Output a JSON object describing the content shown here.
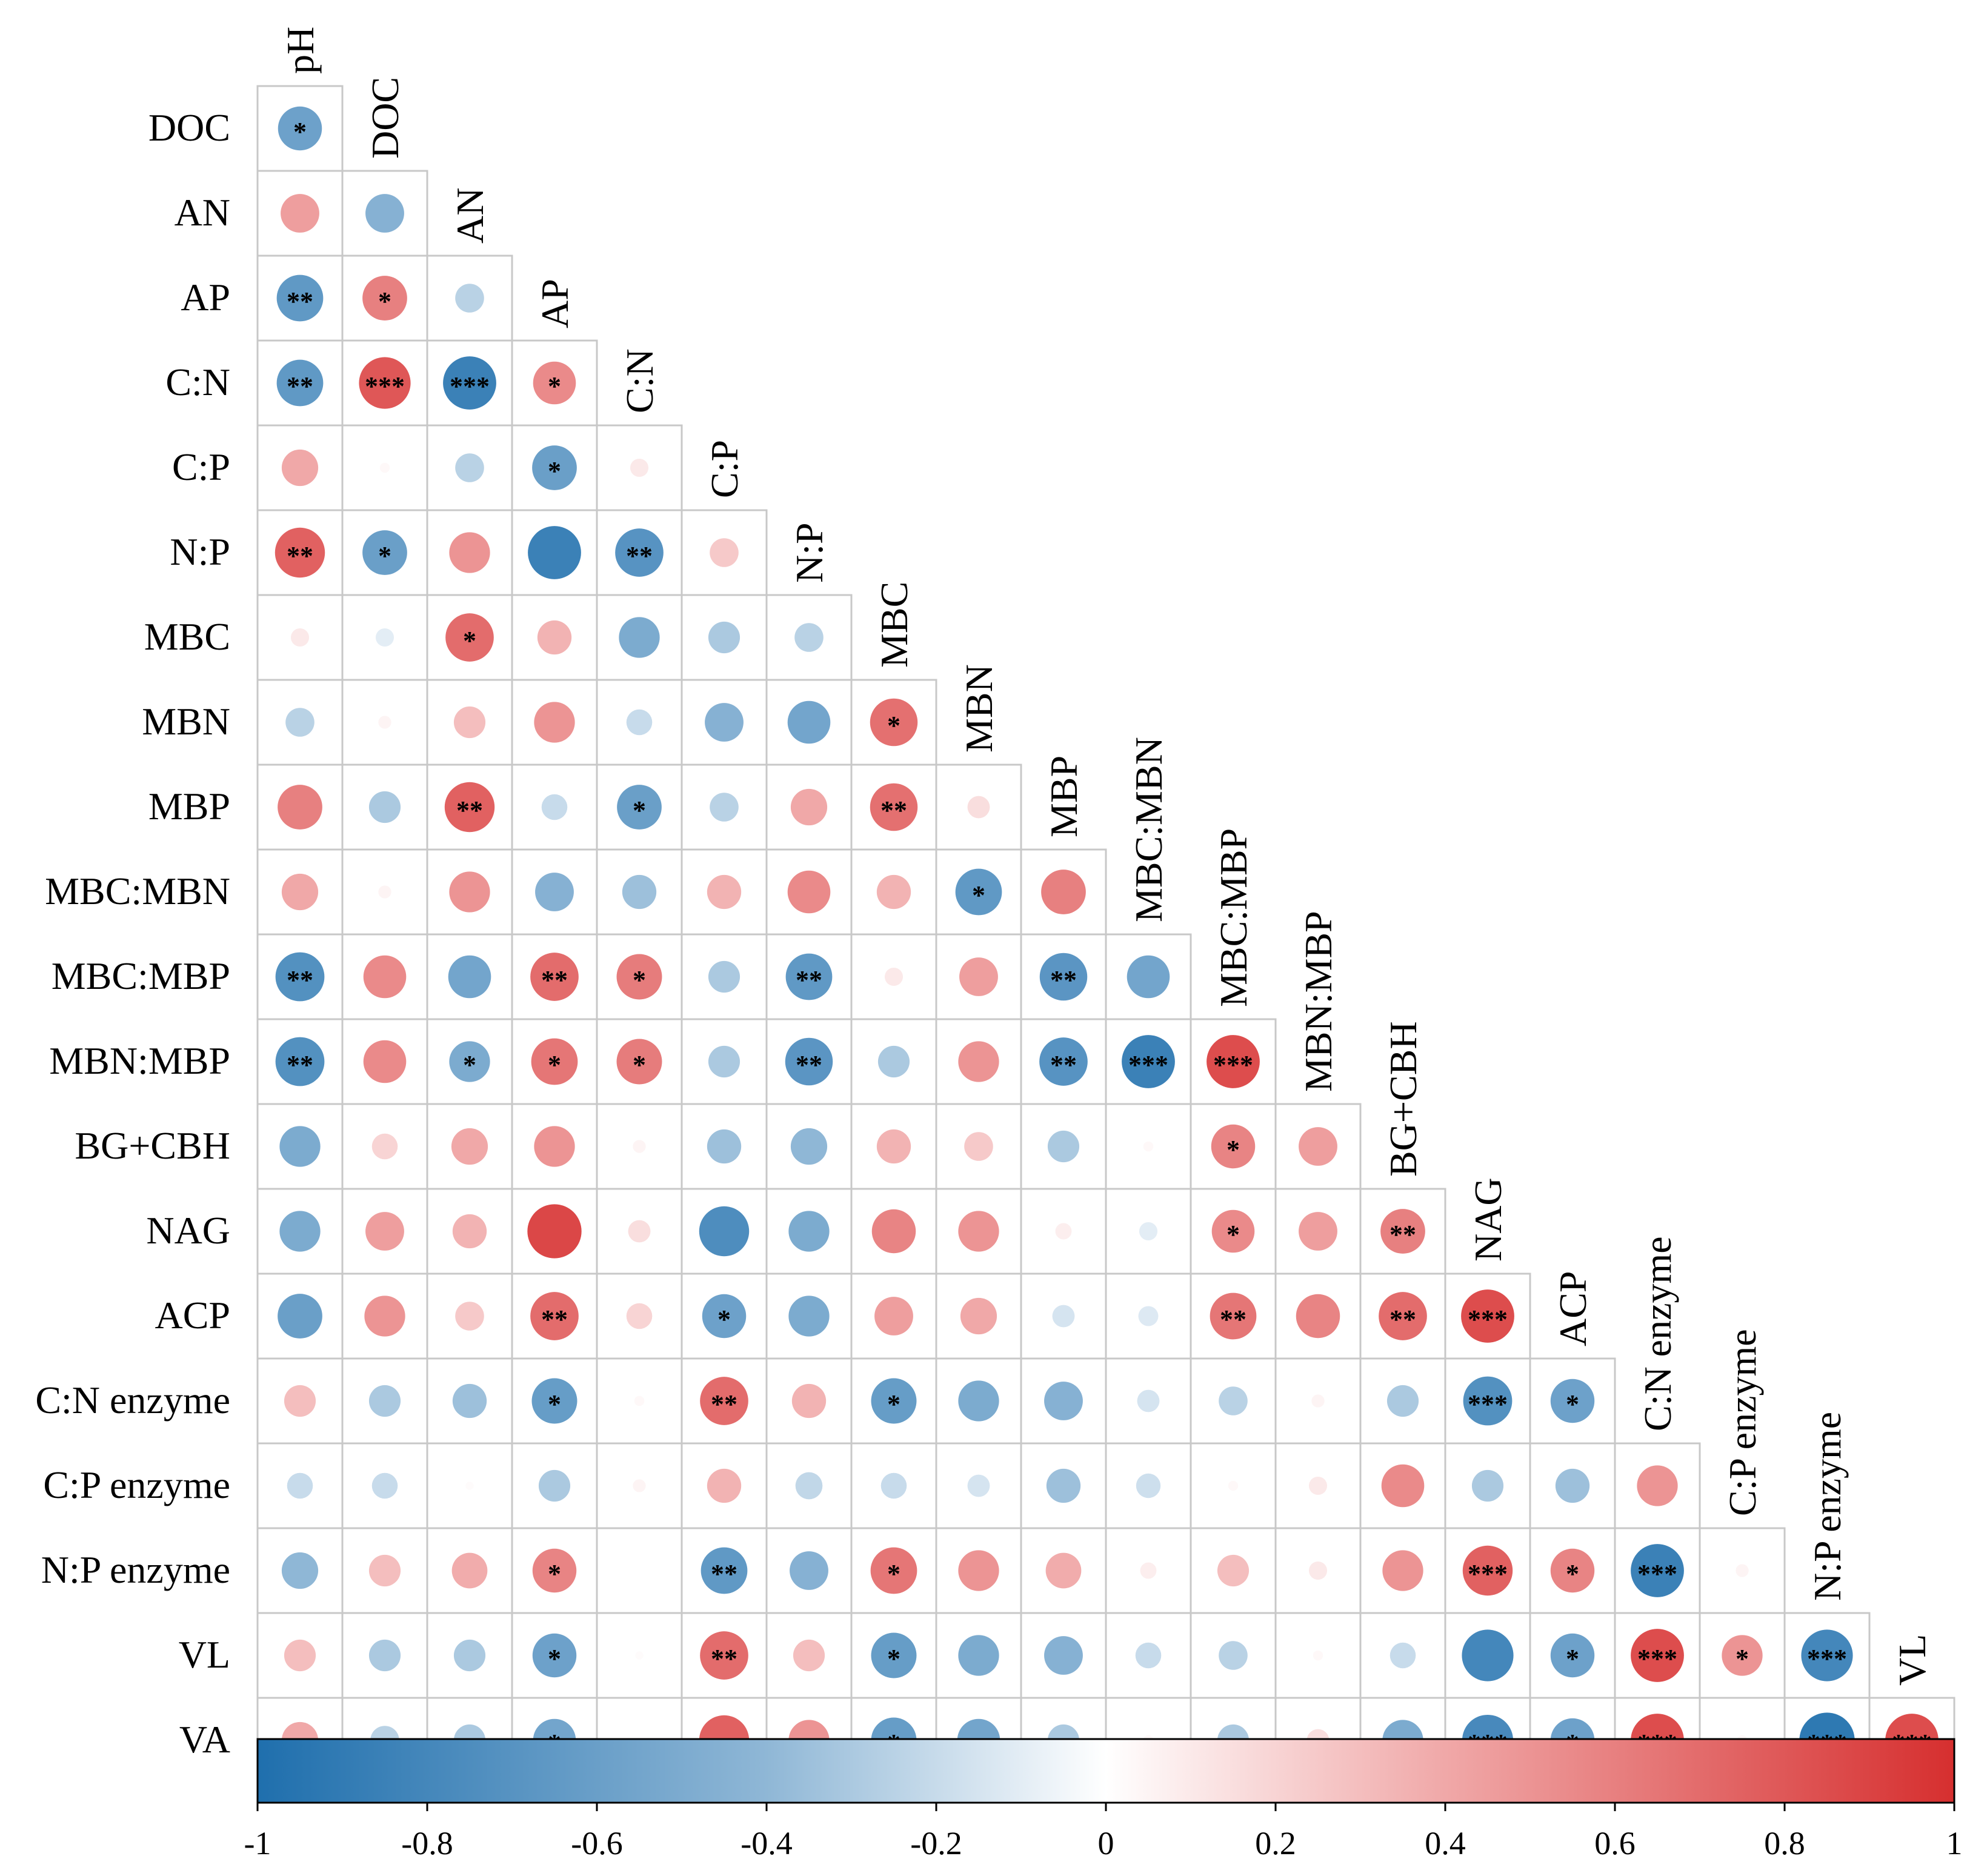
{
  "chart_data": {
    "type": "heatmap",
    "subtype": "lower-triangle correlation matrix (circle size and color encode r)",
    "variables": [
      "pH",
      "DOC",
      "AN",
      "AP",
      "C:N",
      "C:P",
      "N:P",
      "MBC",
      "MBN",
      "MBP",
      "MBC:MBN",
      "MBC:MBP",
      "MBN:MBP",
      "BG+CBH",
      "NAG",
      "ACP",
      "C:N enzyme",
      "C:P enzyme",
      "N:P enzyme",
      "VL",
      "VA"
    ],
    "row_labels": [
      "DOC",
      "AN",
      "AP",
      "C:N",
      "C:P",
      "N:P",
      "MBC",
      "MBN",
      "MBP",
      "MBC:MBN",
      "MBC:MBP",
      "MBN:MBP",
      "BG+CBH",
      "NAG",
      "ACP",
      "C:N enzyme",
      "C:P enzyme",
      "N:P enzyme",
      "VL",
      "VA"
    ],
    "col_labels": [
      "pH",
      "DOC",
      "AN",
      "AP",
      "C:N",
      "C:P",
      "N:P",
      "MBC",
      "MBN",
      "MBP",
      "MBC:MBN",
      "MBC:MBP",
      "MBN:MBP",
      "BG+CBH",
      "NAG",
      "ACP",
      "C:N enzyme",
      "C:P enzyme",
      "N:P enzyme",
      "VL"
    ],
    "correlations": [
      [
        -0.58
      ],
      [
        0.45,
        -0.45
      ],
      [
        -0.65,
        0.6,
        -0.25
      ],
      [
        -0.65,
        0.8,
        -0.85,
        0.55
      ],
      [
        0.4,
        0.03,
        -0.25,
        -0.6,
        0.1
      ],
      [
        0.75,
        -0.6,
        0.5,
        -0.85,
        -0.7,
        0.25
      ],
      [
        0.1,
        -0.1,
        0.7,
        0.35,
        -0.5,
        -0.3,
        -0.25
      ],
      [
        -0.25,
        0.05,
        0.3,
        0.5,
        -0.2,
        -0.45,
        -0.55,
        0.68
      ],
      [
        0.6,
        -0.3,
        0.75,
        -0.2,
        -0.6,
        -0.25,
        0.4,
        0.68,
        0.15
      ],
      [
        0.4,
        0.05,
        0.5,
        -0.45,
        -0.35,
        0.35,
        0.55,
        0.35,
        -0.65,
        0.6
      ],
      [
        -0.72,
        0.55,
        -0.55,
        0.7,
        0.62,
        -0.3,
        -0.65,
        0.1,
        0.45,
        -0.68,
        -0.55
      ],
      [
        -0.72,
        0.55,
        -0.5,
        0.65,
        0.62,
        -0.3,
        -0.68,
        -0.3,
        0.5,
        -0.7,
        -0.85,
        0.85
      ],
      [
        -0.5,
        0.2,
        0.4,
        0.5,
        0.05,
        -0.35,
        -0.4,
        0.35,
        0.25,
        -0.3,
        0.03,
        0.58,
        0.45
      ],
      [
        -0.5,
        0.45,
        0.35,
        0.88,
        0.15,
        -0.75,
        -0.5,
        0.58,
        0.5,
        0.08,
        -0.1,
        0.55,
        0.45,
        0.6
      ],
      [
        -0.6,
        0.5,
        0.25,
        0.7,
        0.2,
        -0.58,
        -0.5,
        0.45,
        0.4,
        -0.15,
        -0.12,
        0.65,
        0.58,
        0.7,
        0.85
      ],
      [
        0.3,
        -0.3,
        -0.35,
        -0.62,
        0.03,
        0.7,
        0.35,
        -0.62,
        -0.5,
        -0.45,
        -0.15,
        -0.25,
        0.05,
        -0.3,
        -0.72,
        -0.58
      ],
      [
        -0.2,
        -0.2,
        0.02,
        -0.3,
        0.05,
        0.35,
        -0.22,
        -0.2,
        -0.15,
        -0.35,
        -0.18,
        0.03,
        0.1,
        0.55,
        -0.3,
        -0.35,
        0.5
      ],
      [
        -0.4,
        0.3,
        0.38,
        0.58,
        0.0,
        -0.65,
        -0.45,
        0.65,
        0.5,
        0.38,
        0.08,
        0.3,
        0.1,
        0.5,
        0.75,
        0.58,
        -0.85,
        0.05
      ],
      [
        0.3,
        -0.3,
        -0.3,
        -0.58,
        0.02,
        0.7,
        0.3,
        -0.62,
        -0.5,
        -0.45,
        -0.2,
        -0.25,
        0.03,
        -0.2,
        -0.8,
        -0.58,
        0.85,
        0.5,
        -0.8
      ],
      [
        0.4,
        -0.25,
        -0.3,
        -0.55,
        0.0,
        0.75,
        0.5,
        -0.62,
        -0.55,
        -0.3,
        0.03,
        -0.3,
        0.15,
        -0.5,
        -0.78,
        -0.58,
        0.85,
        0.03,
        -0.92,
        0.85
      ]
    ],
    "significance": [
      [
        "*"
      ],
      [
        "",
        ""
      ],
      [
        "**",
        "*",
        ""
      ],
      [
        "**",
        "***",
        "***",
        "*"
      ],
      [
        "",
        "",
        "",
        "*",
        ""
      ],
      [
        "**",
        "*",
        "",
        "",
        "**",
        ""
      ],
      [
        "",
        "",
        "*",
        "",
        "",
        "",
        ""
      ],
      [
        "",
        "",
        "",
        "",
        "",
        "",
        "",
        "*"
      ],
      [
        "",
        "",
        "**",
        "",
        "*",
        "",
        "",
        "**",
        ""
      ],
      [
        "",
        "",
        "",
        "",
        "",
        "",
        "",
        "",
        "*",
        ""
      ],
      [
        "**",
        "",
        "",
        "**",
        "*",
        "",
        "**",
        "",
        "",
        "**",
        ""
      ],
      [
        "**",
        "",
        "*",
        "*",
        "*",
        "",
        "**",
        "",
        "",
        "**",
        "***",
        "***"
      ],
      [
        "",
        "",
        "",
        "",
        "",
        "",
        "",
        "",
        "",
        "",
        "",
        "*",
        ""
      ],
      [
        "",
        "",
        "",
        "",
        "",
        "",
        "",
        "",
        "",
        "",
        "",
        "*",
        "",
        "**"
      ],
      [
        "",
        "",
        "",
        "**",
        "",
        "*",
        "",
        "",
        "",
        "",
        "",
        "**",
        "",
        "**",
        "***"
      ],
      [
        "",
        "",
        "",
        "*",
        "",
        "**",
        "",
        "*",
        "",
        "",
        "",
        "",
        "",
        "",
        "***",
        "*"
      ],
      [
        "",
        "",
        "",
        "",
        "",
        "",
        "",
        "",
        "",
        "",
        "",
        "",
        "",
        "",
        "",
        "",
        ""
      ],
      [
        "",
        "",
        "",
        "*",
        "",
        "**",
        "",
        "*",
        "",
        "",
        "",
        "",
        "",
        "",
        "***",
        "*",
        "***",
        ""
      ],
      [
        "",
        "",
        "",
        "*",
        "",
        "**",
        "",
        "*",
        "",
        "",
        "",
        "",
        "",
        "",
        "",
        "*",
        "***",
        "*",
        "***"
      ],
      [
        "",
        "",
        "",
        "*",
        "",
        "",
        "",
        "*",
        "",
        "",
        "",
        "",
        "",
        "",
        "***",
        "*",
        "***",
        "",
        "***",
        "***"
      ]
    ],
    "color_scale": {
      "min": -1,
      "max": 1,
      "colors": [
        "#1f6fad",
        "#8fb7d6",
        "#ffffff",
        "#f0a8a8",
        "#d62f2f"
      ],
      "stops": [
        -1,
        -0.4,
        0,
        0.4,
        1
      ],
      "ticks": [
        "-1",
        "-0.8",
        "-0.6",
        "-0.4",
        "-0.2",
        "0",
        "0.2",
        "0.4",
        "0.6",
        "0.8",
        "1"
      ]
    }
  }
}
